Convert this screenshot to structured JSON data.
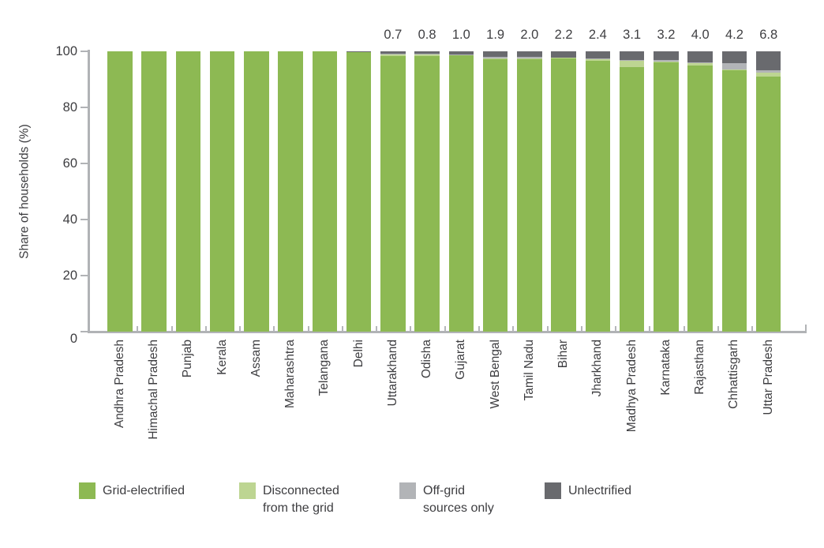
{
  "chart_data": {
    "type": "bar",
    "stacked": true,
    "title": "",
    "xlabel": "",
    "ylabel": "Share of households (%)",
    "ylim": [
      0,
      100
    ],
    "yticks": [
      0,
      20,
      40,
      60,
      80,
      100
    ],
    "grid": false,
    "legend_position": "bottom",
    "categories": [
      "Andhra Pradesh",
      "Himachal Pradesh",
      "Punjab",
      "Kerala",
      "Assam",
      "Maharashtra",
      "Telangana",
      "Delhi",
      "Uttarakhand",
      "Odisha",
      "Gujarat",
      "West Bengal",
      "Tamil Nadu",
      "Bihar",
      "Jharkhand",
      "Madhya Pradesh",
      "Karnataka",
      "Rajasthan",
      "Chhattisgarh",
      "Uttar Pradesh"
    ],
    "series": [
      {
        "name": "Grid-electrified",
        "color": "#8db953",
        "values": [
          100,
          100,
          100,
          100,
          100,
          100,
          100,
          99.6,
          98.4,
          98.2,
          98.8,
          97.5,
          97.4,
          97.5,
          96.6,
          94.4,
          96.2,
          94.8,
          93.3,
          91.1
        ]
      },
      {
        "name": "Disconnected from the grid",
        "color": "#bdd592",
        "values": [
          0,
          0,
          0,
          0,
          0,
          0,
          0,
          0,
          0.8,
          0.6,
          0.1,
          0.1,
          0.1,
          0.3,
          0.5,
          2.3,
          0.1,
          1.1,
          0.1,
          1.2
        ]
      },
      {
        "name": "Off-grid sources only",
        "color": "#b2b4b7",
        "values": [
          0,
          0,
          0,
          0,
          0,
          0,
          0,
          0,
          0.1,
          0.4,
          0.1,
          0.5,
          0.5,
          0,
          0.5,
          0.2,
          0.5,
          0.1,
          2.4,
          0.9
        ]
      },
      {
        "name": "Unlectrified",
        "color": "#696a6e",
        "values": [
          0,
          0,
          0,
          0,
          0,
          0,
          0,
          0.4,
          0.7,
          0.8,
          1.0,
          1.9,
          2.0,
          2.2,
          2.4,
          3.1,
          3.2,
          4.0,
          4.2,
          6.8
        ]
      }
    ],
    "bar_labels": [
      "",
      "",
      "",
      "",
      "",
      "",
      "",
      "",
      "0.7",
      "0.8",
      "1.0",
      "1.9",
      "2.0",
      "2.2",
      "2.4",
      "3.1",
      "3.2",
      "4.0",
      "4.2",
      "6.8"
    ],
    "legend": [
      {
        "line1": "Grid-electrified",
        "line2": "",
        "color": "#8db953"
      },
      {
        "line1": "Disconnected",
        "line2": "from the grid",
        "color": "#bdd592"
      },
      {
        "line1": "Off-grid",
        "line2": "sources only",
        "color": "#b2b4b7"
      },
      {
        "line1": "Unlectrified",
        "line2": "",
        "color": "#696a6e"
      }
    ]
  },
  "colors": {
    "axis": "#b1b3b6",
    "text": "#3d3d40",
    "background": "#ffffff"
  }
}
